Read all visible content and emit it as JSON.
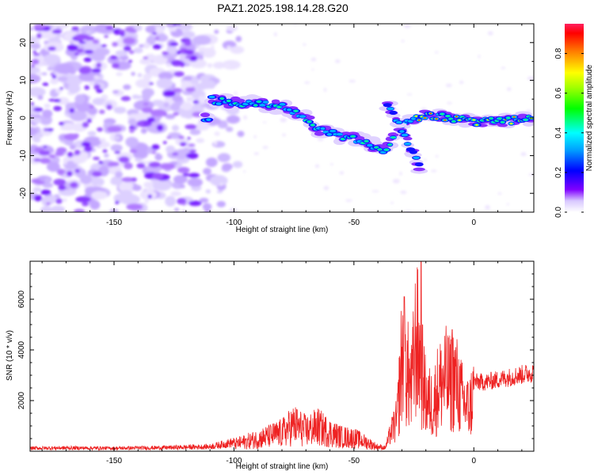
{
  "title": "PAZ1.2025.198.14.28.G20",
  "chart_data": [
    {
      "type": "heatmap",
      "xlabel": "Height of straight line (km)",
      "ylabel": "Frequency (Hz)",
      "xlim": [
        -185,
        25
      ],
      "ylim": [
        -25,
        25
      ],
      "xticks": [
        -150,
        -100,
        -50,
        0
      ],
      "yticks": [
        -20,
        -10,
        0,
        10,
        20
      ],
      "colorbar": {
        "label": "Normalized spectral amplitude",
        "range": [
          0.0,
          0.95
        ],
        "ticks": [
          0.0,
          0.2,
          0.4,
          0.6,
          0.8
        ],
        "colormap": "rainbow"
      },
      "ridge": [
        {
          "x": -110,
          "y": 5
        },
        {
          "x": -100,
          "y": 4
        },
        {
          "x": -90,
          "y": 4
        },
        {
          "x": -80,
          "y": 3
        },
        {
          "x": -70,
          "y": 0
        },
        {
          "x": -65,
          "y": -3
        },
        {
          "x": -55,
          "y": -5
        },
        {
          "x": -45,
          "y": -6
        },
        {
          "x": -38,
          "y": -9
        },
        {
          "x": -30,
          "y": -2
        },
        {
          "x": -20,
          "y": 1
        },
        {
          "x": -10,
          "y": 0
        },
        {
          "x": 0,
          "y": -1
        },
        {
          "x": 10,
          "y": -1
        },
        {
          "x": 25,
          "y": 0
        }
      ],
      "branch": [
        {
          "x": -36,
          "y": 4
        },
        {
          "x": -28,
          "y": -6
        },
        {
          "x": -22,
          "y": -14
        }
      ],
      "noise_region": [
        -185,
        -115
      ]
    },
    {
      "type": "line",
      "xlabel": "Height of straight line (km)",
      "ylabel": "SNR (10 * v/v)",
      "xlim": [
        -185,
        25
      ],
      "ylim": [
        0,
        7500
      ],
      "xticks": [
        -150,
        -100,
        -50,
        0
      ],
      "yticks": [
        2000,
        4000,
        6000
      ],
      "series": [
        {
          "color": "#ee2222",
          "x": [
            -185,
            -170,
            -150,
            -130,
            -110,
            -100,
            -90,
            -80,
            -75,
            -70,
            -65,
            -60,
            -55,
            -50,
            -45,
            -40,
            -37,
            -35,
            -32,
            -30,
            -28,
            -26,
            -24,
            -22,
            -20,
            -17,
            -15,
            -12,
            -10,
            -8,
            -5,
            -2,
            0,
            5,
            10,
            15,
            20,
            25
          ],
          "values": [
            120,
            130,
            120,
            140,
            180,
            350,
            600,
            900,
            1300,
            1000,
            1200,
            900,
            700,
            650,
            450,
            200,
            150,
            700,
            1500,
            4500,
            3800,
            3000,
            5500,
            4000,
            2500,
            2200,
            3000,
            3500,
            3200,
            3500,
            2500,
            2000,
            2800,
            2800,
            2900,
            3000,
            3100,
            3200
          ]
        }
      ],
      "peaks": [
        {
          "x": -29,
          "y": 6100
        },
        {
          "x": -22,
          "y": 7500
        },
        {
          "x": -9,
          "y": 4800
        }
      ]
    }
  ]
}
